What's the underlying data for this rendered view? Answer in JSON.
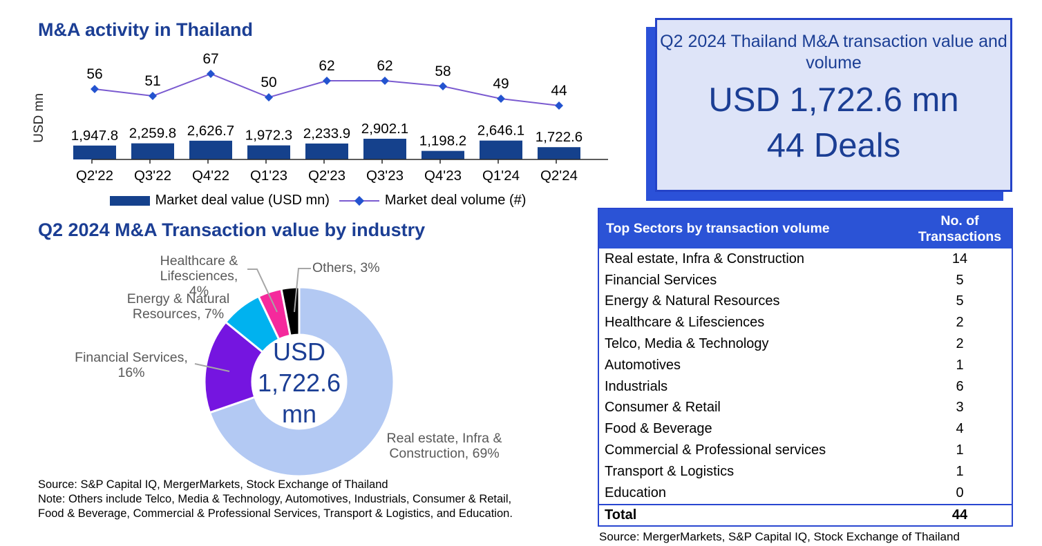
{
  "titles": {
    "activity_chart": "M&A activity in Thailand",
    "industry_chart": "Q2 2024 M&A Transaction value by industry"
  },
  "chart_data": [
    {
      "type": "bar",
      "subtype": "combo-bar-line",
      "title": "M&A activity in Thailand",
      "ylabel": "USD mn",
      "categories": [
        "Q2'22",
        "Q3'22",
        "Q4'22",
        "Q1'23",
        "Q2'23",
        "Q3'23",
        "Q4'23",
        "Q1'24",
        "Q2'24"
      ],
      "series": [
        {
          "name": "Market deal value (USD mn)",
          "type": "bar",
          "color": "#15418c",
          "values": [
            1947.8,
            2259.8,
            2626.7,
            1972.3,
            2233.9,
            2902.1,
            1198.2,
            2646.1,
            1722.6
          ],
          "labels": [
            "1,947.8",
            "2,259.8",
            "2,626.7",
            "1,972.3",
            "2,233.9",
            "2,902.1",
            "1,198.2",
            "2,646.1",
            "1,722.6"
          ]
        },
        {
          "name": "Market deal volume (#)",
          "type": "line",
          "color": "#7a5ad0",
          "marker_color": "#2353cf",
          "values": [
            56,
            51,
            67,
            50,
            62,
            62,
            58,
            49,
            44
          ],
          "labels": [
            "56",
            "51",
            "67",
            "50",
            "62",
            "62",
            "58",
            "49",
            "44"
          ]
        }
      ],
      "legend_position": "bottom",
      "grid": false
    },
    {
      "type": "pie",
      "subtype": "donut",
      "title": "Q2 2024 M&A Transaction value by industry",
      "center_label": "USD\n1,722.6\nmn",
      "slices": [
        {
          "label": "Real estate, Infra & Construction",
          "pct": 69,
          "color": "#b3c9f3"
        },
        {
          "label": "Financial Services",
          "pct": 16,
          "color": "#7515e0"
        },
        {
          "label": "Energy & Natural Resources",
          "pct": 7,
          "color": "#00b2ef"
        },
        {
          "label": "Healthcare & Lifesciences",
          "pct": 4,
          "color": "#f5299c"
        },
        {
          "label": "Others",
          "pct": 3,
          "color": "#000000"
        }
      ],
      "callout_labels": {
        "healthcare": "Healthcare &\nLifesciences, 4%",
        "others": "Others, 3%",
        "energy": "Energy & Natural\nResources, 7%",
        "financial": "Financial Services,\n16%",
        "realestate": "Real estate, Infra &\nConstruction, 69%"
      }
    }
  ],
  "legend": {
    "bar_label": "Market deal value (USD mn)",
    "line_label": "Market deal volume (#)"
  },
  "stat_box": {
    "title": "Q2 2024 Thailand M&A transaction value and volume",
    "value": "USD 1,722.6 mn",
    "deals": "44 Deals"
  },
  "table": {
    "col1_header": "Top Sectors by transaction volume",
    "col2_header": "No. of\nTransactions",
    "rows": [
      {
        "sector": "Real estate, Infra & Construction",
        "count": "14"
      },
      {
        "sector": "Financial Services",
        "count": "5"
      },
      {
        "sector": "Energy & Natural Resources",
        "count": "5"
      },
      {
        "sector": "Healthcare & Lifesciences",
        "count": "2"
      },
      {
        "sector": "Telco, Media & Technology",
        "count": "2"
      },
      {
        "sector": "Automotives",
        "count": "1"
      },
      {
        "sector": "Industrials",
        "count": "6"
      },
      {
        "sector": "Consumer & Retail",
        "count": "3"
      },
      {
        "sector": "Food & Beverage",
        "count": "4"
      },
      {
        "sector": "Commercial & Professional services",
        "count": "1"
      },
      {
        "sector": "Transport & Logistics",
        "count": "1"
      },
      {
        "sector": "Education",
        "count": "0"
      }
    ],
    "total_label": "Total",
    "total_value": "44",
    "source": "Source: MergerMarkets, S&P Capital IQ, Stock Exchange of Thailand"
  },
  "notes": {
    "source_line": "Source: S&P Capital IQ, MergerMarkets, Stock Exchange of Thailand",
    "note_line": "Note: Others include Telco, Media & Technology, Automotives, Industrials, Consumer & Retail, Food & Beverage, Commercial & Professional Services, Transport & Logistics, and Education."
  },
  "colors": {
    "navy_text": "#1b3e94",
    "bar_navy": "#15418c",
    "royal_blue": "#2b51d8",
    "stat_box_fill": "#dee4f8",
    "line_purple": "#7a5ad0",
    "marker_blue": "#2353cf",
    "donut_lightblue": "#b3c9f3",
    "donut_purple": "#7515e0",
    "donut_cyan": "#00b2ef",
    "donut_pink": "#f5299c",
    "donut_black": "#000000",
    "callout_gray": "#595959"
  }
}
